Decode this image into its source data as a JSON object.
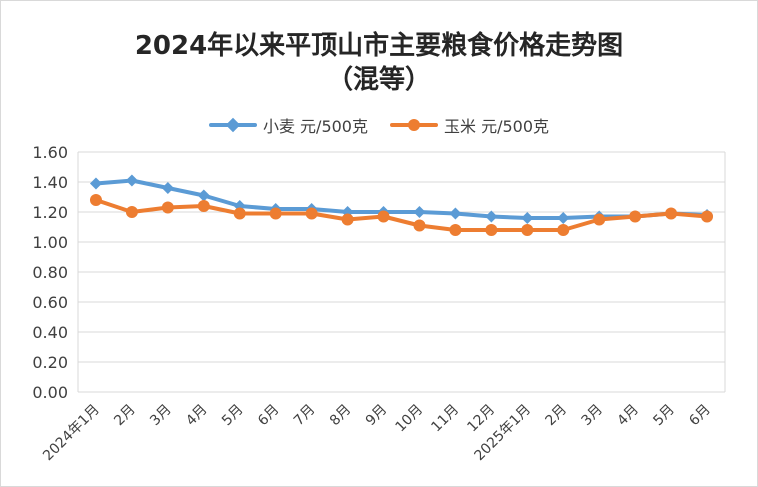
{
  "chart_data": {
    "type": "line",
    "title": "2024年以来平顶山市主要粮食价格走势图",
    "subtitle": "（混等）",
    "categories": [
      "2024年1月",
      "2月",
      "3月",
      "4月",
      "5月",
      "6月",
      "7月",
      "8月",
      "9月",
      "10月",
      "11月",
      "12月",
      "2025年1月",
      "2月",
      "3月",
      "4月",
      "5月",
      "6月"
    ],
    "series": [
      {
        "name": "小麦 元/500克",
        "color": "#5b9bd5",
        "marker": "diamond",
        "values": [
          1.39,
          1.41,
          1.36,
          1.31,
          1.24,
          1.22,
          1.22,
          1.2,
          1.2,
          1.2,
          1.19,
          1.17,
          1.16,
          1.16,
          1.17,
          1.17,
          1.19,
          1.18
        ]
      },
      {
        "name": "玉米 元/500克",
        "color": "#ed7d31",
        "marker": "circle",
        "values": [
          1.28,
          1.2,
          1.23,
          1.24,
          1.19,
          1.19,
          1.19,
          1.15,
          1.17,
          1.11,
          1.08,
          1.08,
          1.08,
          1.08,
          1.15,
          1.17,
          1.19,
          1.17
        ]
      }
    ],
    "ylim": [
      0,
      1.6
    ],
    "yticks": [
      "0.00",
      "0.20",
      "0.40",
      "0.60",
      "0.80",
      "1.00",
      "1.20",
      "1.40",
      "1.60"
    ],
    "grid": true,
    "legend": "top-center"
  }
}
